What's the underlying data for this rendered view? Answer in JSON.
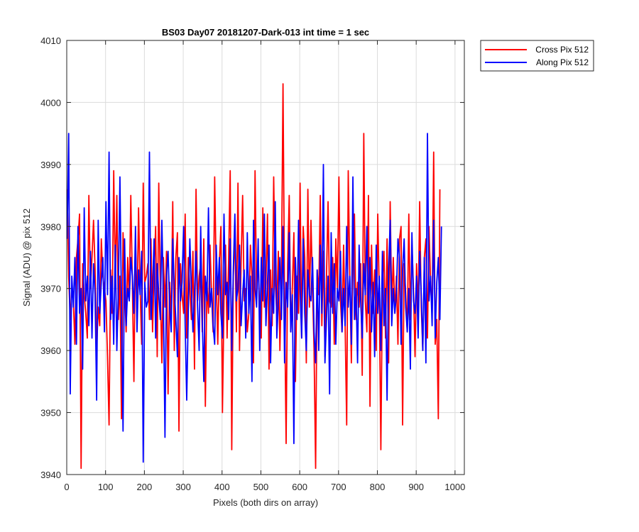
{
  "chart_data": {
    "type": "line",
    "title": "BS03 Day07 20181207-Dark-013 int time = 1 sec",
    "xlabel": "Pixels (both dirs on array)",
    "ylabel": "Signal (ADU) @ pix 512",
    "xlim": [
      0,
      1024
    ],
    "ylim": [
      3940,
      4010
    ],
    "x_ticks": [
      0,
      100,
      200,
      300,
      400,
      500,
      600,
      700,
      800,
      900,
      1000
    ],
    "y_ticks": [
      3940,
      3950,
      3960,
      3970,
      3980,
      3990,
      4000,
      4010
    ],
    "grid": true,
    "legend_position": "outside top-right",
    "series": [
      {
        "name": "Cross Pix 512",
        "color": "#ff0000",
        "x_start": 1,
        "x_step": 4,
        "values": [
          3986,
          3972,
          3965,
          3970,
          3968,
          3961,
          3975,
          3978,
          3982,
          3941,
          3974,
          3969,
          3966,
          3962,
          3985,
          3970,
          3975,
          3981,
          3973,
          3960,
          3967,
          3964,
          3978,
          3972,
          3970,
          3968,
          3959,
          3948,
          3973,
          3966,
          3989,
          3971,
          3985,
          3965,
          3972,
          3949,
          3979,
          3970,
          3963,
          3975,
          3968,
          3985,
          3971,
          3955,
          3978,
          3966,
          3983,
          3970,
          3961,
          3987,
          3971,
          3972,
          3974,
          3965,
          3978,
          3963,
          3973,
          3980,
          3959,
          3987,
          3970,
          3958,
          3975,
          3967,
          3976,
          3953,
          3971,
          3965,
          3984,
          3960,
          3975,
          3979,
          3947,
          3974,
          3969,
          3966,
          3982,
          3962,
          3975,
          3970,
          3965,
          3976,
          3957,
          3986,
          3968,
          3972,
          3974,
          3963,
          3978,
          3951,
          3971,
          3966,
          3977,
          3969,
          3963,
          3988,
          3972,
          3961,
          3974,
          3980,
          3950,
          3968,
          3977,
          3962,
          3975,
          3989,
          3944,
          3972,
          3979,
          3963,
          3987,
          3960,
          3974,
          3985,
          3968,
          3970,
          3963,
          3966,
          3977,
          3972,
          3958,
          3989,
          3969,
          3975,
          3966,
          3962,
          3983,
          3967,
          3971,
          3982,
          3957,
          3973,
          3964,
          3988,
          3971,
          3966,
          3976,
          3960,
          3972,
          4003,
          3968,
          3945,
          3974,
          3985,
          3963,
          3970,
          3979,
          3955,
          3972,
          3966,
          3987,
          3962,
          3980,
          3975,
          3958,
          3986,
          3967,
          3981,
          3970,
          3960,
          3941,
          3973,
          3969,
          3985,
          3964,
          3976,
          3959,
          3972,
          3984,
          3968,
          3967,
          3975,
          3961,
          3978,
          3970,
          3988,
          3968,
          3963,
          3977,
          3964,
          3948,
          3989,
          3972,
          3958,
          3976,
          3982,
          3965,
          3971,
          3967,
          3974,
          3956,
          3995,
          3968,
          3963,
          3985,
          3951,
          3977,
          3966,
          3973,
          3960,
          3982,
          3969,
          3944,
          3971,
          3976,
          3962,
          3978,
          3958,
          3984,
          3967,
          3975,
          3966,
          3972,
          3961,
          3978,
          3980,
          3948,
          3974,
          3969,
          3963,
          3982,
          3965,
          3977,
          3970,
          3959,
          3974,
          3966,
          3984,
          3967,
          3960,
          3975,
          3978,
          3962,
          3980,
          3971,
          3966,
          3992,
          3961,
          3965,
          3949,
          3986
        ]
      },
      {
        "name": "Along Pix 512",
        "color": "#0000ff",
        "x_start": 1,
        "x_step": 4,
        "values": [
          3978,
          3995,
          3953,
          3972,
          3967,
          3975,
          3961,
          3980,
          3966,
          3970,
          3957,
          3983,
          3968,
          3972,
          3964,
          3976,
          3962,
          3974,
          3969,
          3952,
          3981,
          3966,
          3971,
          3975,
          3963,
          3984,
          3969,
          3992,
          3965,
          3972,
          3961,
          3977,
          3960,
          3970,
          3988,
          3967,
          3947,
          3978,
          3964,
          3970,
          3968,
          3975,
          3972,
          3966,
          3980,
          3963,
          3973,
          3969,
          3976,
          3942,
          3971,
          3967,
          3968,
          3992,
          3965,
          3970,
          3978,
          3962,
          3974,
          3969,
          3965,
          3981,
          3968,
          3946,
          3972,
          3976,
          3967,
          3963,
          3978,
          3970,
          3965,
          3959,
          3975,
          3968,
          3971,
          3980,
          3964,
          3952,
          3966,
          3978,
          3970,
          3963,
          3969,
          3976,
          3967,
          3960,
          3980,
          3965,
          3955,
          3972,
          3968,
          3983,
          3967,
          3970,
          3964,
          3961,
          3977,
          3969,
          3975,
          3966,
          3962,
          3982,
          3969,
          3971,
          3965,
          3978,
          3960,
          3973,
          3982,
          3968,
          3970,
          3977,
          3964,
          3969,
          3973,
          3962,
          3979,
          3966,
          3972,
          3955,
          3981,
          3970,
          3967,
          3978,
          3960,
          3975,
          3968,
          3982,
          3964,
          3971,
          3977,
          3958,
          3970,
          3966,
          3984,
          3962,
          3968,
          3975,
          3965,
          3980,
          3958,
          3971,
          3967,
          3979,
          3963,
          3969,
          3945,
          3975,
          3965,
          3981,
          3970,
          3962,
          3978,
          3966,
          3960,
          3973,
          3969,
          3968,
          3975,
          3963,
          3958,
          3973,
          3960,
          3977,
          3966,
          3990,
          3958,
          3965,
          3972,
          3953,
          3979,
          3966,
          3974,
          3961,
          3970,
          3968,
          3976,
          3963,
          3970,
          3964,
          3980,
          3967,
          3972,
          3961,
          3988,
          3965,
          3970,
          3958,
          3977,
          3968,
          3962,
          3974,
          3969,
          3980,
          3966,
          3975,
          3963,
          3971,
          3959,
          3977,
          3966,
          3972,
          3960,
          3976,
          3964,
          3970,
          3952,
          3973,
          3981,
          3964,
          3970,
          3966,
          3969,
          3978,
          3975,
          3961,
          3973,
          3978,
          3967,
          3963,
          3970,
          3957,
          3979,
          3968,
          3966,
          3972,
          3962,
          3976,
          3969,
          3960,
          3975,
          3958,
          3995,
          3968,
          3972,
          3964,
          3981,
          3962,
          3971,
          3975,
          3965,
          3980
        ]
      }
    ]
  }
}
